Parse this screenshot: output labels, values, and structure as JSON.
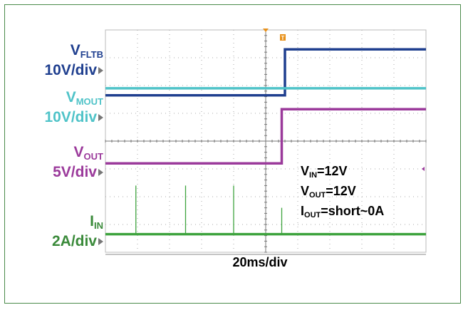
{
  "chart_data": {
    "type": "line",
    "title": "",
    "timebase": "20ms/div",
    "divisions": {
      "x": 10,
      "y": 8
    },
    "trigger_marker": "T",
    "series": [
      {
        "name": "V",
        "subscript": "FLTB",
        "scale": "10V/div",
        "color": "#1f3f8f",
        "x": [
          0,
          5.6,
          5.6,
          10
        ],
        "y": [
          2.35,
          2.35,
          0.7,
          0.7
        ]
      },
      {
        "name": "V",
        "subscript": "MOUT",
        "scale": "10V/div",
        "color": "#4fc3c8",
        "x": [
          0,
          10
        ],
        "y": [
          2.1,
          2.1
        ]
      },
      {
        "name": "V",
        "subscript": "OUT",
        "scale": "5V/div",
        "color": "#9b3a9b",
        "x": [
          0,
          5.5,
          5.5,
          10
        ],
        "y": [
          4.8,
          4.8,
          2.85,
          2.85
        ]
      },
      {
        "name": "I",
        "subscript": "IN",
        "scale": "2A/div",
        "color": "#3ea33e",
        "x": [
          0,
          10
        ],
        "y": [
          7.35,
          7.35
        ],
        "spikes": [
          {
            "x": 0.95,
            "y": 5.6
          },
          {
            "x": 2.5,
            "y": 5.6
          },
          {
            "x": 4.0,
            "y": 5.6
          },
          {
            "x": 5.5,
            "y": 6.4
          }
        ]
      }
    ],
    "annotations": [
      {
        "main": "V",
        "sub": "IN",
        "rest": "=12V"
      },
      {
        "main": "V",
        "sub": "OUT",
        "rest": "=12V"
      },
      {
        "main": "I",
        "sub": "OUT",
        "rest": "=short~0A"
      }
    ]
  }
}
